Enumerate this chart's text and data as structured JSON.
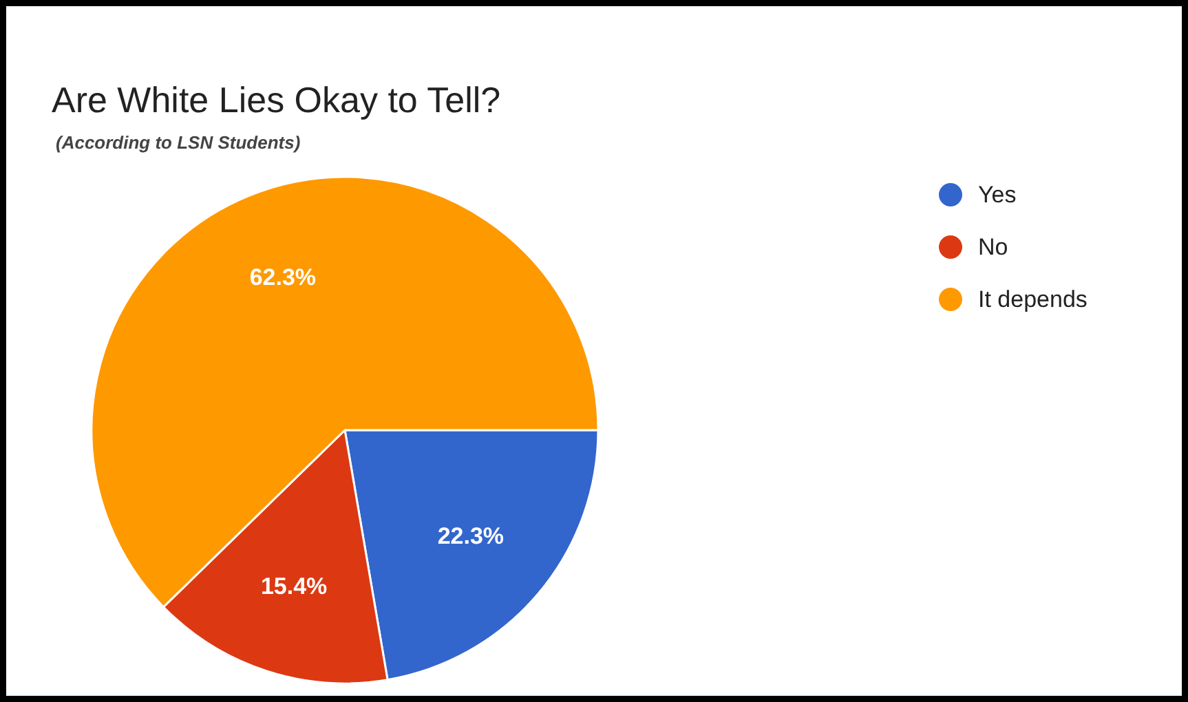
{
  "chart_data": {
    "type": "pie",
    "title": "Are White Lies Okay to Tell?",
    "subtitle": "(According to LSN Students)",
    "categories": [
      "Yes",
      "No",
      "It depends"
    ],
    "values": [
      22.3,
      15.4,
      62.3
    ],
    "colors": [
      "#3366cc",
      "#dc3912",
      "#ff9900"
    ],
    "value_labels": [
      "22.3%",
      "15.4%",
      "62.3%"
    ],
    "legend": "top right"
  }
}
